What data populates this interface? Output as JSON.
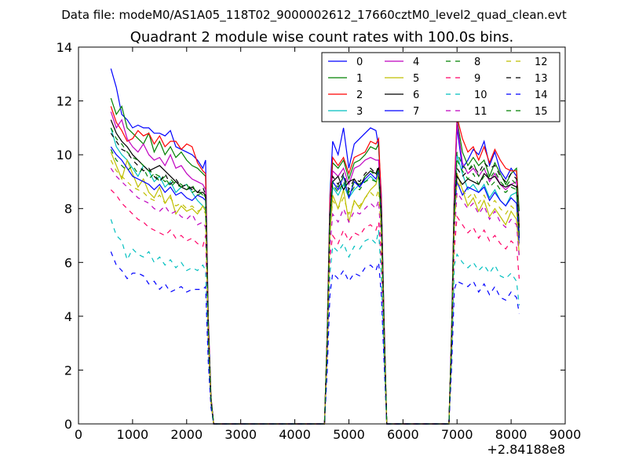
{
  "figure": {
    "suptitle": "Data file: modeM0/AS1A05_118T02_9000002612_17660cztM0_level2_quad_clean.evt"
  },
  "chart_data": {
    "type": "line",
    "title": "Quadrant 2 module wise count rates with 100.0s bins.",
    "xlabel": "",
    "ylabel": "",
    "x_offset_label": "+2.84188e8",
    "xlim": [
      0,
      9000
    ],
    "ylim": [
      0,
      14
    ],
    "xticks": [
      0,
      1000,
      2000,
      3000,
      4000,
      5000,
      6000,
      7000,
      8000,
      9000
    ],
    "yticks": [
      0,
      2,
      4,
      6,
      8,
      10,
      12,
      14
    ],
    "grid": false,
    "legend": {
      "placement": "top-right",
      "columns": 4
    },
    "x": [
      600,
      700,
      800,
      900,
      1000,
      1100,
      1200,
      1300,
      1400,
      1500,
      1600,
      1700,
      1800,
      1900,
      2000,
      2100,
      2200,
      2300,
      2350,
      2400,
      2450,
      2500,
      2550,
      4500,
      4550,
      4600,
      4650,
      4700,
      4800,
      4900,
      5000,
      5100,
      5200,
      5300,
      5400,
      5500,
      5550,
      5600,
      5650,
      5700,
      5750,
      6800,
      6850,
      6900,
      6950,
      7000,
      7100,
      7200,
      7300,
      7400,
      7500,
      7600,
      7700,
      7800,
      7900,
      8000,
      8100,
      8150
    ],
    "series": [
      {
        "name": "0",
        "color": "#0000ff",
        "dash": "solid",
        "values": [
          13.2,
          12.5,
          11.5,
          11.3,
          11.0,
          11.1,
          11.0,
          11.0,
          10.8,
          10.8,
          10.7,
          10.9,
          10.3,
          10.2,
          10.1,
          10.0,
          9.8,
          9.5,
          9.8,
          4,
          1,
          0,
          0,
          0,
          0,
          3.5,
          8.5,
          10.5,
          10.0,
          11.0,
          9.5,
          10.4,
          10.6,
          10.8,
          11.0,
          10.9,
          10.3,
          8.5,
          4,
          0,
          0,
          0,
          0,
          3.5,
          8.8,
          11.0,
          9.5,
          9.8,
          10.2,
          10.0,
          10.5,
          9.6,
          10.1,
          9.4,
          9.1,
          9.5,
          9.2,
          7.0
        ]
      },
      {
        "name": "1",
        "color": "#008000",
        "dash": "solid",
        "values": [
          12.1,
          11.5,
          11.8,
          11.0,
          10.8,
          10.6,
          10.4,
          10.8,
          10.1,
          10.5,
          10.0,
          10.3,
          9.9,
          10.1,
          9.8,
          9.6,
          9.5,
          9.3,
          9.2,
          3.8,
          0.9,
          0,
          0,
          0,
          0,
          3.3,
          8.1,
          9.7,
          9.5,
          9.8,
          9.1,
          9.7,
          9.8,
          10.0,
          10.3,
          10.2,
          10.4,
          8.2,
          3.8,
          0,
          0,
          0,
          0,
          3.4,
          8.6,
          11.3,
          10.1,
          9.6,
          9.9,
          9.6,
          9.8,
          9.2,
          9.7,
          9.3,
          8.9,
          9.3,
          9.5,
          7.9
        ]
      },
      {
        "name": "2",
        "color": "#ff0000",
        "dash": "solid",
        "values": [
          11.8,
          11.2,
          10.9,
          10.5,
          10.6,
          10.9,
          10.7,
          10.8,
          10.4,
          10.7,
          10.3,
          10.5,
          10.5,
          10.2,
          10.4,
          10.3,
          9.7,
          9.4,
          9.3,
          3.9,
          1.0,
          0,
          0,
          0,
          0,
          3.4,
          8.3,
          9.9,
          9.6,
          9.9,
          9.3,
          9.9,
          10.0,
          10.1,
          10.5,
          10.4,
          10.6,
          8.3,
          3.9,
          0,
          0,
          0,
          0,
          3.5,
          8.7,
          11.4,
          10.6,
          10.1,
          10.3,
          9.8,
          10.3,
          9.7,
          10.2,
          9.8,
          9.5,
          9.4,
          9.4,
          7.3
        ]
      },
      {
        "name": "3",
        "color": "#00bfbf",
        "dash": "solid",
        "values": [
          11.0,
          10.3,
          10.0,
          9.8,
          9.5,
          9.2,
          9.6,
          9.4,
          9.0,
          9.2,
          8.8,
          9.0,
          8.6,
          8.8,
          8.9,
          8.6,
          8.3,
          8.1,
          8.0,
          3.4,
          0.8,
          0,
          0,
          0,
          0,
          3.0,
          7.3,
          8.8,
          8.5,
          8.9,
          8.4,
          8.7,
          8.9,
          9.0,
          9.2,
          9.0,
          9.2,
          7.5,
          3.4,
          0,
          0,
          0,
          0,
          3.0,
          7.8,
          10.0,
          9.3,
          8.7,
          8.9,
          8.6,
          8.9,
          8.4,
          8.7,
          8.3,
          8.1,
          8.5,
          8.6,
          7.0
        ]
      },
      {
        "name": "4",
        "color": "#bf00bf",
        "dash": "solid",
        "values": [
          11.6,
          11.0,
          11.3,
          10.6,
          10.3,
          10.1,
          10.4,
          10.0,
          9.8,
          9.9,
          9.6,
          10.0,
          9.5,
          9.6,
          9.3,
          9.1,
          9.0,
          8.9,
          8.7,
          3.7,
          0.9,
          0,
          0,
          0,
          0,
          3.2,
          7.9,
          9.4,
          9.2,
          9.5,
          8.9,
          9.5,
          9.6,
          9.8,
          9.9,
          9.8,
          9.8,
          8.0,
          3.7,
          0,
          0,
          0,
          0,
          3.3,
          8.3,
          11.2,
          9.7,
          9.3,
          9.5,
          9.2,
          9.5,
          9.0,
          9.3,
          8.9,
          8.7,
          8.9,
          9.0,
          7.5
        ]
      },
      {
        "name": "5",
        "color": "#bfbf00",
        "dash": "solid",
        "values": [
          10.1,
          9.6,
          9.1,
          9.8,
          9.3,
          8.8,
          9.1,
          8.6,
          8.4,
          8.8,
          8.2,
          8.5,
          7.8,
          8.1,
          7.9,
          8.0,
          7.8,
          8.1,
          7.9,
          3.3,
          0.8,
          0,
          0,
          0,
          0,
          2.9,
          7.1,
          8.5,
          8.0,
          8.7,
          7.5,
          8.3,
          8.0,
          8.4,
          8.7,
          8.9,
          9.3,
          7.2,
          3.3,
          0,
          0,
          0,
          0,
          2.9,
          7.5,
          9.3,
          8.7,
          8.1,
          8.4,
          7.9,
          8.3,
          7.7,
          8.0,
          7.7,
          7.4,
          7.9,
          7.6,
          6.3
        ]
      },
      {
        "name": "6",
        "color": "#000000",
        "dash": "solid",
        "values": [
          11.3,
          10.8,
          10.5,
          10.3,
          10.0,
          9.8,
          9.6,
          9.4,
          9.5,
          9.6,
          9.4,
          9.2,
          9.0,
          8.8,
          8.7,
          8.8,
          8.6,
          8.6,
          8.5,
          3.6,
          0.9,
          0,
          0,
          0,
          0,
          3.2,
          7.8,
          9.0,
          9.2,
          8.7,
          9.0,
          9.1,
          8.8,
          9.2,
          9.4,
          9.3,
          9.5,
          7.8,
          3.6,
          0,
          0,
          0,
          0,
          3.2,
          8.1,
          9.2,
          8.9,
          9.1,
          9.0,
          8.9,
          9.3,
          9.1,
          9.2,
          8.9,
          8.8,
          8.9,
          8.8,
          6.9
        ]
      },
      {
        "name": "7",
        "color": "#0000ff",
        "dash": "solid",
        "values": [
          10.3,
          10.0,
          9.8,
          9.5,
          9.2,
          9.1,
          9.0,
          8.9,
          8.7,
          8.9,
          8.6,
          8.8,
          8.5,
          8.6,
          8.4,
          8.3,
          8.5,
          8.4,
          8.3,
          3.5,
          0.9,
          0,
          0,
          0,
          0,
          3.0,
          7.5,
          9.0,
          8.7,
          9.2,
          8.4,
          9.0,
          8.8,
          9.1,
          9.3,
          9.1,
          9.4,
          7.5,
          3.5,
          0,
          0,
          0,
          0,
          3.1,
          7.9,
          9.0,
          8.5,
          8.8,
          8.7,
          8.6,
          8.8,
          8.3,
          8.6,
          8.3,
          8.1,
          8.4,
          8.2,
          6.7
        ]
      },
      {
        "name": "8",
        "color": "#008000",
        "dash": "dash",
        "values": [
          10.2,
          9.8,
          9.6,
          9.4,
          9.6,
          9.3,
          9.5,
          9.1,
          9.3,
          9.0,
          9.2,
          8.8,
          9.0,
          8.9,
          8.7,
          8.9,
          8.5,
          8.6,
          8.4,
          3.5,
          0.9,
          0,
          0,
          0,
          0,
          3.1,
          7.6,
          8.9,
          8.6,
          9.0,
          8.5,
          8.8,
          8.7,
          9.0,
          9.1,
          9.0,
          9.2,
          7.6,
          3.5,
          0,
          0,
          0,
          0,
          3.1,
          7.9,
          9.8,
          9.4,
          9.1,
          9.3,
          8.9,
          9.2,
          8.8,
          9.0,
          8.7,
          8.6,
          8.8,
          8.7,
          7.1
        ]
      },
      {
        "name": "9",
        "color": "#ff0066",
        "dash": "dash",
        "values": [
          8.7,
          8.5,
          8.2,
          8.0,
          7.8,
          7.6,
          7.5,
          7.3,
          7.2,
          7.1,
          7.0,
          7.2,
          6.9,
          7.0,
          6.8,
          6.9,
          6.7,
          6.6,
          7.0,
          3.0,
          0.8,
          0,
          0,
          0,
          0,
          2.6,
          6.2,
          7.0,
          6.7,
          7.2,
          6.8,
          7.1,
          7.0,
          7.3,
          7.4,
          7.2,
          7.5,
          6.0,
          3.0,
          0,
          0,
          0,
          0,
          2.7,
          6.5,
          7.7,
          7.4,
          7.1,
          7.3,
          6.9,
          7.2,
          6.8,
          7.0,
          6.7,
          6.5,
          6.8,
          6.6,
          5.4
        ]
      },
      {
        "name": "10",
        "color": "#00bfbf",
        "dash": "dash",
        "values": [
          7.6,
          7.0,
          6.8,
          6.1,
          6.5,
          6.3,
          6.2,
          6.4,
          6.0,
          6.2,
          5.9,
          6.1,
          5.8,
          6.0,
          5.7,
          5.8,
          5.7,
          5.9,
          5.7,
          2.5,
          0.7,
          0,
          0,
          0,
          0,
          2.3,
          5.6,
          6.6,
          6.4,
          6.7,
          6.2,
          6.6,
          6.5,
          6.8,
          6.9,
          6.7,
          7.2,
          5.5,
          2.5,
          0,
          0,
          0,
          0,
          2.4,
          5.9,
          6.3,
          6.0,
          5.8,
          6.0,
          5.7,
          5.9,
          5.6,
          5.9,
          5.5,
          5.4,
          5.6,
          5.3,
          4.4
        ]
      },
      {
        "name": "11",
        "color": "#bf00bf",
        "dash": "dash",
        "values": [
          9.5,
          9.2,
          9.0,
          8.8,
          8.6,
          8.4,
          8.3,
          8.2,
          8.0,
          7.9,
          8.1,
          7.8,
          7.9,
          7.7,
          7.6,
          7.8,
          7.4,
          7.5,
          7.3,
          3.1,
          0.8,
          0,
          0,
          0,
          0,
          2.7,
          6.6,
          7.8,
          7.5,
          8.0,
          7.5,
          7.9,
          7.8,
          8.0,
          8.2,
          8.0,
          8.3,
          6.6,
          3.1,
          0,
          0,
          0,
          0,
          2.8,
          7.0,
          8.6,
          8.3,
          8.0,
          8.2,
          7.8,
          8.1,
          7.6,
          7.9,
          7.5,
          7.3,
          7.6,
          7.4,
          6.2
        ]
      },
      {
        "name": "12",
        "color": "#bfbf00",
        "dash": "dash",
        "values": [
          9.8,
          9.4,
          9.2,
          9.0,
          8.8,
          8.7,
          8.6,
          8.4,
          8.3,
          8.5,
          8.2,
          8.4,
          8.1,
          8.2,
          8.0,
          8.1,
          7.9,
          8.0,
          7.8,
          3.3,
          0.8,
          0,
          0,
          0,
          0,
          2.9,
          7.0,
          8.3,
          8.0,
          8.4,
          7.8,
          8.2,
          8.1,
          8.4,
          8.6,
          8.4,
          8.7,
          7.0,
          3.3,
          0,
          0,
          0,
          0,
          2.9,
          7.3,
          9.0,
          8.7,
          8.4,
          8.6,
          8.2,
          8.5,
          8.1,
          8.3,
          8.0,
          7.8,
          8.1,
          7.9,
          6.5
        ]
      },
      {
        "name": "13",
        "color": "#000000",
        "dash": "dash",
        "values": [
          10.8,
          10.5,
          10.2,
          10.1,
          9.8,
          9.6,
          9.4,
          9.5,
          9.2,
          9.0,
          9.3,
          8.9,
          9.1,
          8.8,
          8.9,
          8.7,
          8.6,
          8.8,
          8.5,
          3.6,
          0.9,
          0,
          0,
          0,
          0,
          3.2,
          7.8,
          9.2,
          8.9,
          9.3,
          8.7,
          9.1,
          9.0,
          9.3,
          9.5,
          9.3,
          9.6,
          7.7,
          3.6,
          0,
          0,
          0,
          0,
          3.2,
          8.1,
          9.5,
          9.2,
          9.4,
          9.6,
          9.3,
          9.7,
          9.5,
          9.6,
          9.2,
          9.0,
          9.3,
          9.1,
          7.2
        ]
      },
      {
        "name": "14",
        "color": "#0000ff",
        "dash": "dash",
        "values": [
          6.4,
          5.9,
          5.7,
          5.4,
          5.6,
          5.6,
          5.5,
          5.2,
          5.3,
          5.0,
          5.2,
          4.9,
          5.0,
          5.1,
          4.9,
          5.0,
          5.0,
          5.0,
          5.1,
          2.3,
          0.6,
          0,
          0,
          0,
          0,
          2.0,
          4.8,
          5.6,
          5.4,
          5.7,
          5.3,
          5.6,
          5.5,
          5.8,
          5.9,
          5.7,
          6.0,
          4.8,
          2.3,
          0,
          0,
          0,
          0,
          2.1,
          5.0,
          5.3,
          5.2,
          5.1,
          5.3,
          4.9,
          5.2,
          4.8,
          5.1,
          4.7,
          4.6,
          4.9,
          4.7,
          4.1
        ]
      },
      {
        "name": "15",
        "color": "#008000",
        "dash": "dash",
        "values": [
          11.0,
          10.6,
          10.4,
          10.1,
          9.9,
          9.8,
          9.6,
          9.4,
          9.3,
          9.2,
          9.0,
          9.1,
          8.9,
          8.8,
          8.9,
          8.6,
          8.7,
          8.5,
          8.4,
          3.6,
          0.9,
          0,
          0,
          0,
          0,
          3.2,
          7.7,
          9.0,
          8.8,
          9.2,
          8.6,
          9.0,
          8.9,
          9.2,
          9.4,
          9.2,
          9.5,
          7.7,
          3.6,
          0,
          0,
          0,
          0,
          3.2,
          8.0,
          10.1,
          9.6,
          9.4,
          9.7,
          9.2,
          9.5,
          9.1,
          9.4,
          9.0,
          8.8,
          9.1,
          8.9,
          7.3
        ]
      }
    ]
  }
}
